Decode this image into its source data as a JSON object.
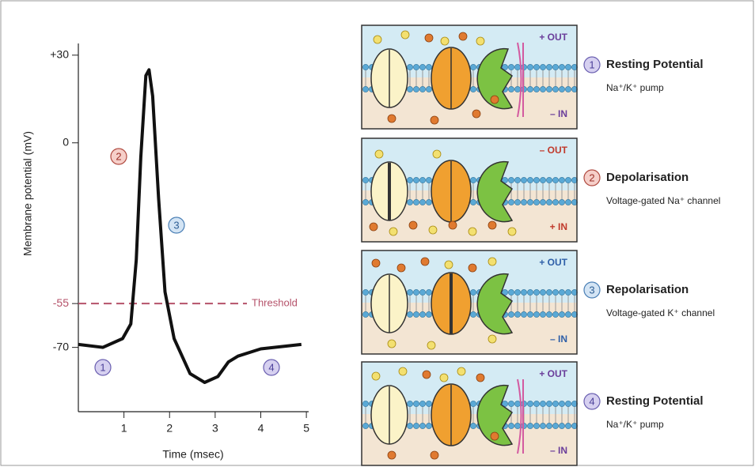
{
  "chart_data": {
    "type": "line",
    "x_label": "Time (msec)",
    "y_label": "Membrane potential (mV)",
    "x": [
      0,
      0.54,
      0.97,
      1.15,
      1.27,
      1.37,
      1.48,
      1.55,
      1.63,
      1.76,
      1.9,
      2.1,
      2.45,
      2.77,
      3.06,
      3.29,
      3.5,
      4.0,
      4.89
    ],
    "values": [
      -69,
      -70,
      -67,
      -62,
      -40,
      -5,
      23,
      25,
      16,
      -19,
      -51,
      -67,
      -79,
      -82,
      -80,
      -75,
      -73,
      -70.5,
      -69
    ],
    "color": "#111111",
    "xlim": [
      0,
      5.05
    ],
    "ylim": [
      -92,
      34
    ],
    "xticks": [
      1,
      2,
      3,
      4,
      5
    ],
    "yticks": [
      {
        "value": 30,
        "label": "+30"
      },
      0,
      -55,
      -70
    ],
    "threshold": {
      "value": -55,
      "label": "Threshold",
      "color": "#b5526a"
    },
    "phase_labels": [
      "1",
      "2",
      "3",
      "4"
    ]
  },
  "panels": [
    {
      "number": "1",
      "title": "Resting Potential",
      "subtitle": "Na⁺/K⁺ pump",
      "out_label": "+ OUT",
      "in_label": "– IN"
    },
    {
      "number": "2",
      "title": "Depolarisation",
      "subtitle": "Voltage-gated Na⁺ channel",
      "out_label": "– OUT",
      "in_label": "+ IN"
    },
    {
      "number": "3",
      "title": "Repolarisation",
      "subtitle": "Voltage-gated K⁺ channel",
      "out_label": "+ OUT",
      "in_label": "– IN"
    },
    {
      "number": "4",
      "title": "Resting Potential",
      "subtitle": "Na⁺/K⁺ pump",
      "out_label": "+ OUT",
      "in_label": "– IN"
    }
  ]
}
